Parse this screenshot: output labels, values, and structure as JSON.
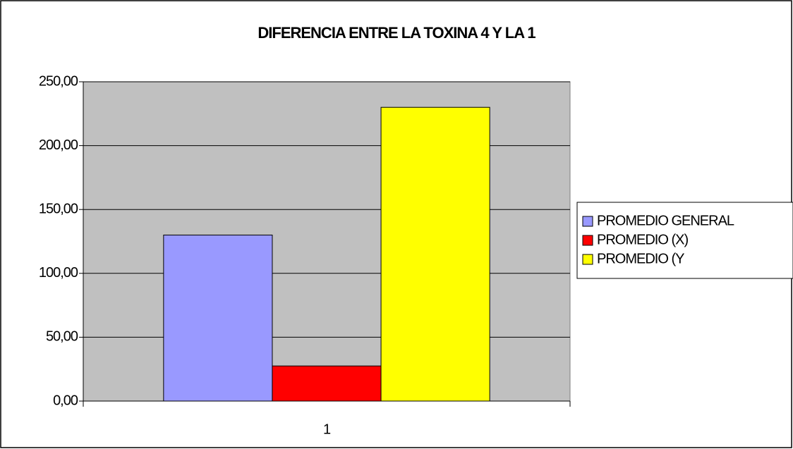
{
  "chart_data": {
    "type": "bar",
    "title": "DIFERENCIA ENTRE LA TOXINA 4 Y LA 1",
    "categories": [
      "1"
    ],
    "series": [
      {
        "name": "PROMEDIO GENERAL",
        "color": "#9999ff",
        "values": [
          130
        ]
      },
      {
        "name": "PROMEDIO (X)",
        "color": "#ff0000",
        "values": [
          27.5
        ]
      },
      {
        "name": "PROMEDIO (Y",
        "color": "#ffff00",
        "values": [
          230
        ]
      }
    ],
    "ylim": [
      0,
      250
    ],
    "yticks": [
      {
        "value": 0,
        "label": "0,00"
      },
      {
        "value": 50,
        "label": "50,00"
      },
      {
        "value": 100,
        "label": "100,00"
      },
      {
        "value": 150,
        "label": "150,00"
      },
      {
        "value": 200,
        "label": "200,00"
      },
      {
        "value": 250,
        "label": "250,00"
      }
    ],
    "grid": true,
    "legend": "right",
    "plot_background": "#c0c0c0"
  }
}
